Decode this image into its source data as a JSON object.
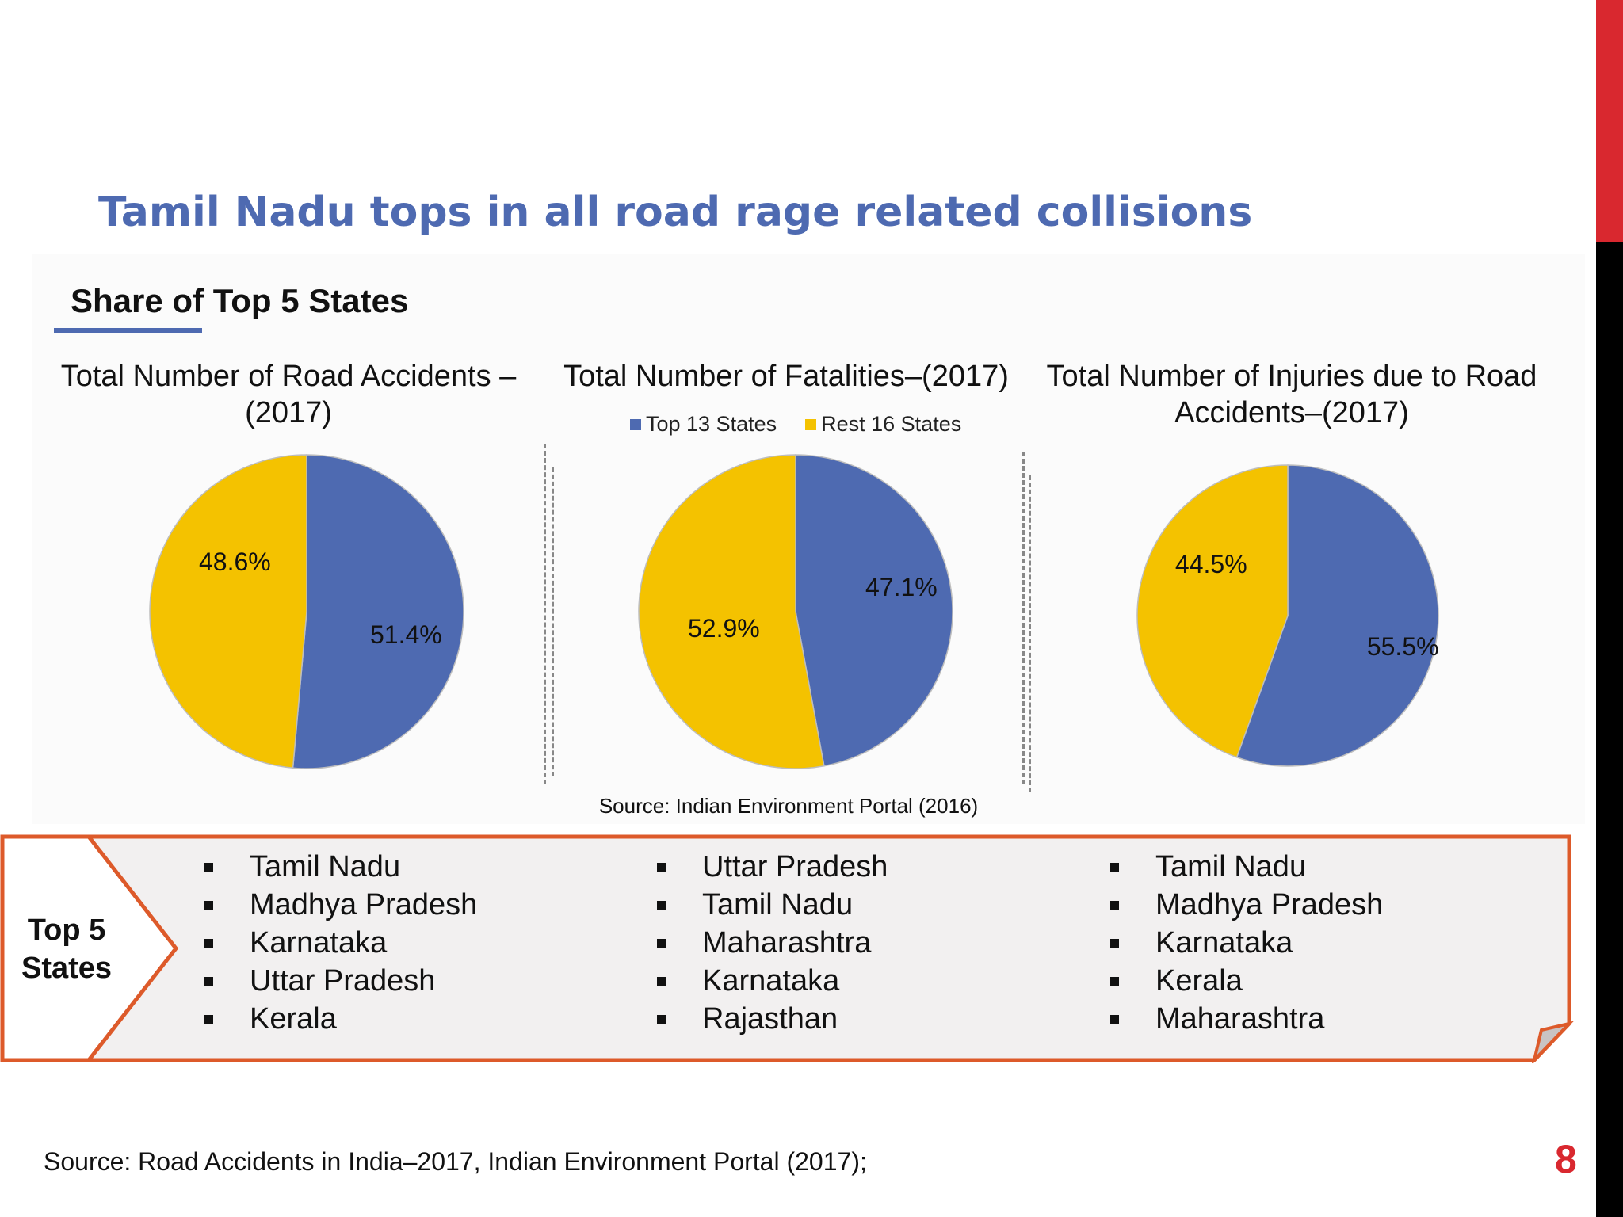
{
  "slide": {
    "title": "Tamil Nadu tops in all road rage related collisions",
    "section_title": "Share of Top 5 States",
    "chart_source": "Source: Indian Environment Portal (2016)",
    "footer_source": "Source: Road Accidents in India–2017, Indian Environment Portal (2017);",
    "page_number": "8"
  },
  "colors": {
    "blue": "#4e6ab1",
    "yellow": "#f4c200",
    "accent_red": "#d9282f",
    "frame_orange": "#dd5a2a"
  },
  "legend": [
    "Top 13 States",
    "Rest 16 States"
  ],
  "chart_data": [
    {
      "type": "pie",
      "title": "Total Number of Road Accidents –(2017)",
      "series": [
        {
          "name": "Top 13 States",
          "value": 51.4,
          "label": "51.4%"
        },
        {
          "name": "Rest 16 States",
          "value": 48.6,
          "label": "48.6%"
        }
      ]
    },
    {
      "type": "pie",
      "title": "Total Number of Fatalities–(2017)",
      "series": [
        {
          "name": "Top 13 States",
          "value": 47.1,
          "label": "47.1%"
        },
        {
          "name": "Rest 16 States",
          "value": 52.9,
          "label": "52.9%"
        }
      ]
    },
    {
      "type": "pie",
      "title": "Total Number of Injuries due to Road Accidents–(2017)",
      "series": [
        {
          "name": "Top 13 States",
          "value": 55.5,
          "label": "55.5%"
        },
        {
          "name": "Rest 16 States",
          "value": 44.5,
          "label": "44.5%"
        }
      ]
    }
  ],
  "top5": {
    "label": "Top 5 States",
    "lists": [
      [
        "Tamil Nadu",
        "Madhya Pradesh",
        "Karnataka",
        "Uttar Pradesh",
        "Kerala"
      ],
      [
        "Uttar Pradesh",
        "Tamil Nadu",
        "Maharashtra",
        "Karnataka",
        "Rajasthan"
      ],
      [
        "Tamil Nadu",
        "Madhya Pradesh",
        "Karnataka",
        "Kerala",
        "Maharashtra"
      ]
    ]
  }
}
